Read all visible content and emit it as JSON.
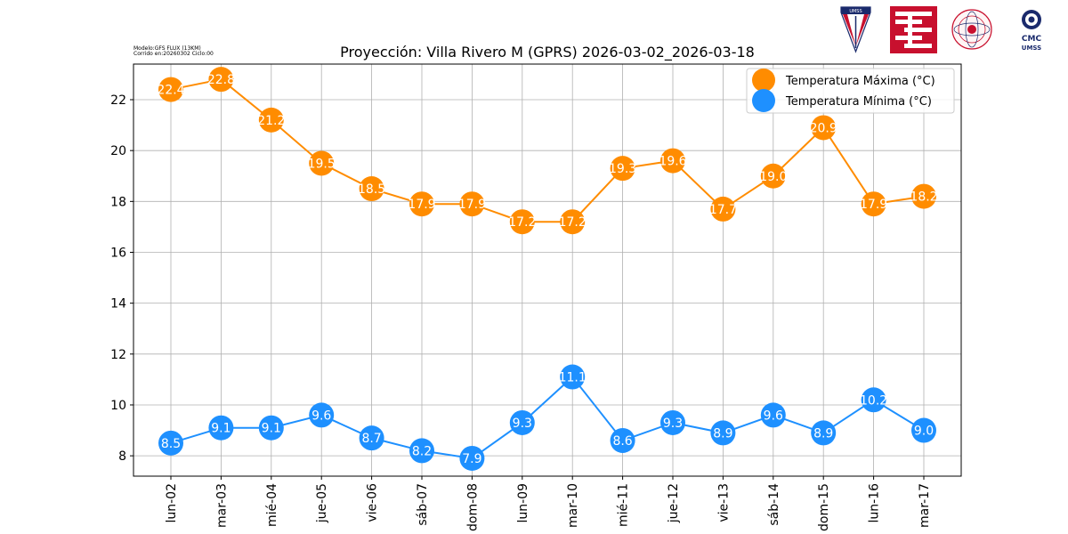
{
  "meta": {
    "model_line": "Modelo:GFS FLUX (13KM)",
    "run_line": "Corrido en:20260302 Ciclo:00"
  },
  "logos": {
    "umss_text": "UMSS",
    "cmc_line1": "CMC",
    "cmc_line2": "UMSS"
  },
  "chart_data": {
    "type": "line",
    "title": "Proyección: Villa Rivero M (GPRS) 2026-03-02_2026-03-18",
    "xlabel": "",
    "ylabel": "",
    "categories": [
      "lun-02",
      "mar-03",
      "mié-04",
      "jue-05",
      "vie-06",
      "sáb-07",
      "dom-08",
      "lun-09",
      "mar-10",
      "mié-11",
      "jue-12",
      "vie-13",
      "sáb-14",
      "dom-15",
      "lun-16",
      "mar-17"
    ],
    "series": [
      {
        "name": "Temperatura Máxima  (°C)",
        "color": "#ff8c00",
        "values": [
          22.4,
          22.8,
          21.2,
          19.5,
          18.5,
          17.9,
          17.9,
          17.2,
          17.2,
          19.3,
          19.6,
          17.7,
          19.0,
          20.9,
          17.9,
          18.2
        ],
        "labels": [
          "22.4",
          "22.8",
          "21.2",
          "19.5",
          "18.5",
          "17.9",
          "17.9",
          "17.2",
          "17.2",
          "19.3",
          "19.6",
          "17.7",
          "19.0",
          "20.9",
          "17.9",
          "18.2"
        ]
      },
      {
        "name": "Temperatura Mínima  (°C)",
        "color": "#1e90ff",
        "values": [
          8.5,
          9.1,
          9.1,
          9.6,
          8.7,
          8.2,
          7.9,
          9.3,
          11.1,
          8.6,
          9.3,
          8.9,
          9.6,
          8.9,
          10.2,
          9.0
        ],
        "labels": [
          "8.5",
          "9.1",
          "9.1",
          "9.6",
          "8.7",
          "8.2",
          "7.9",
          "9.3",
          "11.1",
          "8.6",
          "9.3",
          "8.9",
          "9.6",
          "8.9",
          "10.2",
          "9.0"
        ]
      }
    ],
    "yticks": [
      "8",
      "10",
      "12",
      "14",
      "16",
      "18",
      "20",
      "22"
    ],
    "ylim": [
      7.2,
      23.4
    ],
    "grid": true,
    "legend_position": "top-right"
  }
}
